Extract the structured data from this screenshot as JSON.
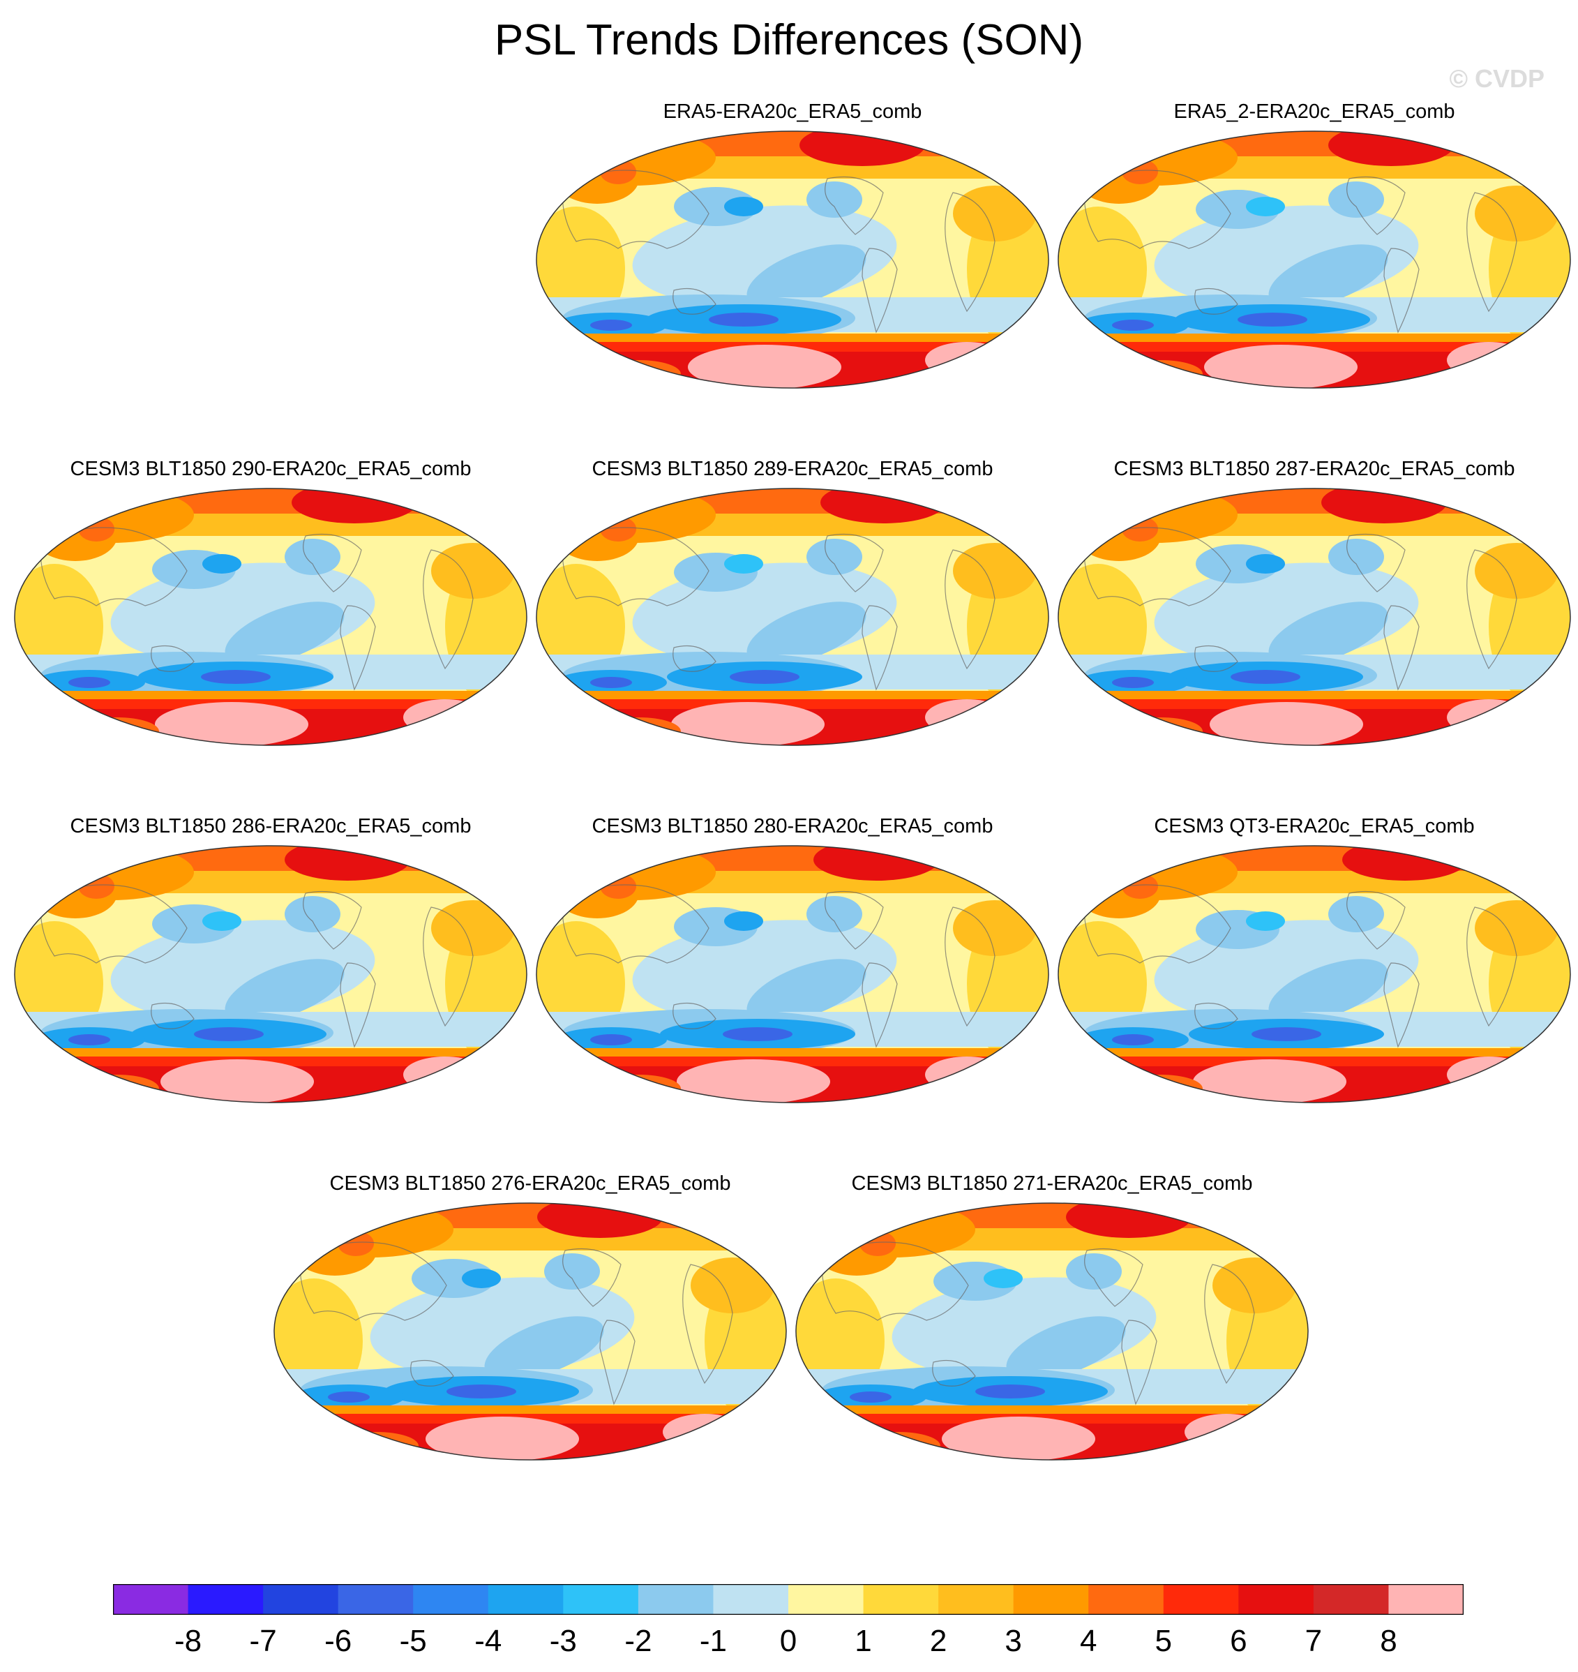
{
  "title": "PSL Trends Differences (SON)",
  "watermark": "© CVDP",
  "chart_data": {
    "type": "heatmap",
    "title": "PSL Trends Differences (SON)",
    "projection": "Robinson",
    "panels": [
      "ERA5-ERA20c_ERA5_comb",
      "ERA5_2-ERA20c_ERA5_comb",
      "CESM3 BLT1850 290-ERA20c_ERA5_comb",
      "CESM3 BLT1850 289-ERA20c_ERA5_comb",
      "CESM3 BLT1850 287-ERA20c_ERA5_comb",
      "CESM3 BLT1850 286-ERA20c_ERA5_comb",
      "CESM3 BLT1850 280-ERA20c_ERA5_comb",
      "CESM3 QT3-ERA20c_ERA5_comb",
      "CESM3 BLT1850 276-ERA20c_ERA5_comb",
      "CESM3 BLT1850 271-ERA20c_ERA5_comb"
    ],
    "colorbar": {
      "colors": [
        "#8a2be2",
        "#2a1aff",
        "#2244e0",
        "#3a66e6",
        "#2e86f2",
        "#1ea4f0",
        "#2ec2f8",
        "#8ccaee",
        "#bfe2f2",
        "#fff6a0",
        "#ffd93a",
        "#ffbe1e",
        "#ff9a00",
        "#ff6a10",
        "#ff2a0a",
        "#e61010",
        "#d42828",
        "#ffb4b4"
      ],
      "tick_labels": [
        "-8",
        "-7",
        "-6",
        "-5",
        "-4",
        "-3",
        "-2",
        "-1",
        "0",
        "1",
        "2",
        "3",
        "4",
        "5",
        "6",
        "7",
        "8"
      ],
      "boundaries": [
        -8,
        -7,
        -6,
        -5,
        -4,
        -3,
        -2,
        -1,
        0,
        1,
        2,
        3,
        4,
        5,
        6,
        7,
        8
      ]
    }
  }
}
